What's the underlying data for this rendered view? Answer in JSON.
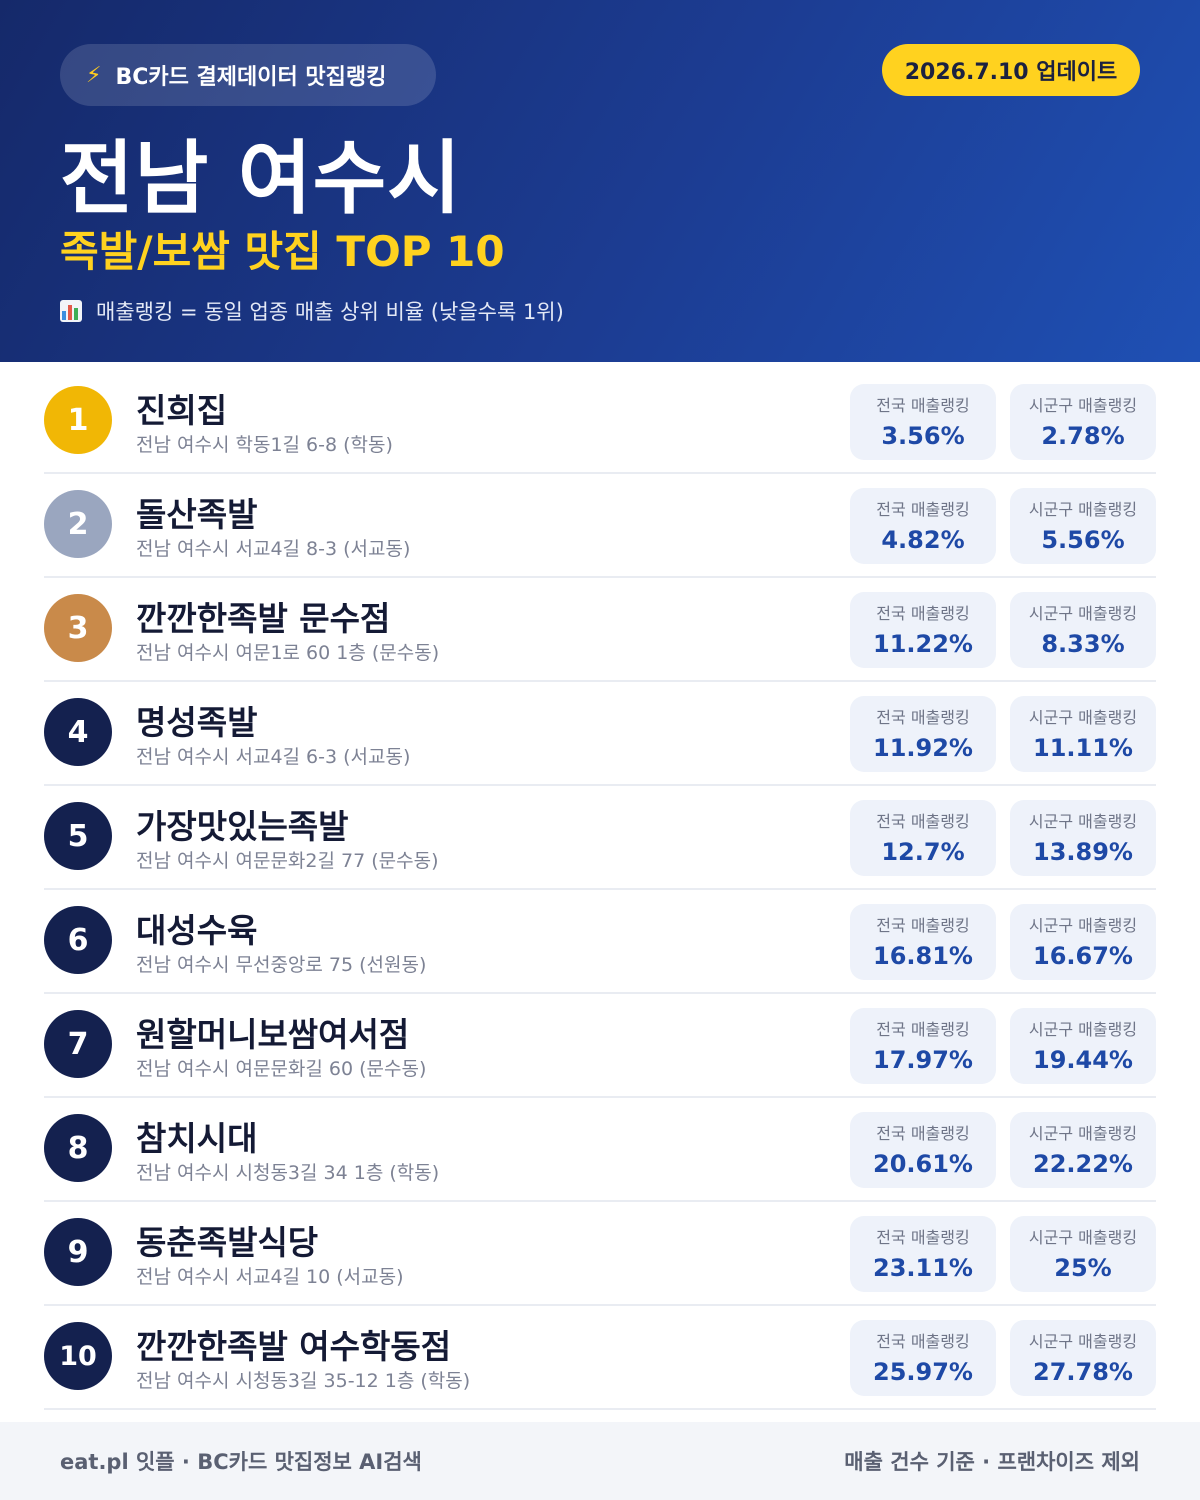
{
  "header": {
    "brand": "BC카드 결제데이터 맛집랭킹",
    "brand_icon": "lightning-bolt-icon",
    "update": "2026.7.10 업데이트",
    "city": "전남 여수시",
    "subtitle": "족발/보쌈 맛집 TOP 10",
    "note_icon": "bar-chart-icon",
    "note": "매출랭킹 = 동일 업종 매출 상위 비율 (낮을수록 1위)"
  },
  "labels": {
    "national": "전국 매출랭킹",
    "local": "시군구 매출랭킹"
  },
  "restaurants": [
    {
      "rank": "1",
      "name": "진희집",
      "address": "전남 여수시 학동1길 6-8 (학동)",
      "national": "3.56%",
      "local": "2.78%"
    },
    {
      "rank": "2",
      "name": "돌산족발",
      "address": "전남 여수시 서교4길 8-3 (서교동)",
      "national": "4.82%",
      "local": "5.56%"
    },
    {
      "rank": "3",
      "name": "깐깐한족발 문수점",
      "address": "전남 여수시 여문1로 60 1층 (문수동)",
      "national": "11.22%",
      "local": "8.33%"
    },
    {
      "rank": "4",
      "name": "명성족발",
      "address": "전남 여수시 서교4길 6-3 (서교동)",
      "national": "11.92%",
      "local": "11.11%"
    },
    {
      "rank": "5",
      "name": "가장맛있는족발",
      "address": "전남 여수시 여문문화2길 77 (문수동)",
      "national": "12.7%",
      "local": "13.89%"
    },
    {
      "rank": "6",
      "name": "대성수육",
      "address": "전남 여수시 무선중앙로 75 (선원동)",
      "national": "16.81%",
      "local": "16.67%"
    },
    {
      "rank": "7",
      "name": "원할머니보쌈여서점",
      "address": "전남 여수시 여문문화길 60 (문수동)",
      "national": "17.97%",
      "local": "19.44%"
    },
    {
      "rank": "8",
      "name": "참치시대",
      "address": "전남 여수시 시청동3길 34 1층 (학동)",
      "national": "20.61%",
      "local": "22.22%"
    },
    {
      "rank": "9",
      "name": "동춘족발식당",
      "address": "전남 여수시 서교4길 10 (서교동)",
      "national": "23.11%",
      "local": "25%"
    },
    {
      "rank": "10",
      "name": "깐깐한족발 여수학동점",
      "address": "전남 여수시 시청동3길 35-12 1층 (학동)",
      "national": "25.97%",
      "local": "27.78%"
    }
  ],
  "rank_colors": {
    "gold": "#f1b705",
    "silver": "#9aa6bf",
    "bronze": "#c98a4a",
    "default": "#14214f"
  },
  "footer": {
    "left": "eat.pl 잇플 · BC카드 맛집정보 AI검색",
    "right": "매출 건수 기준 · 프랜차이즈 제외"
  }
}
